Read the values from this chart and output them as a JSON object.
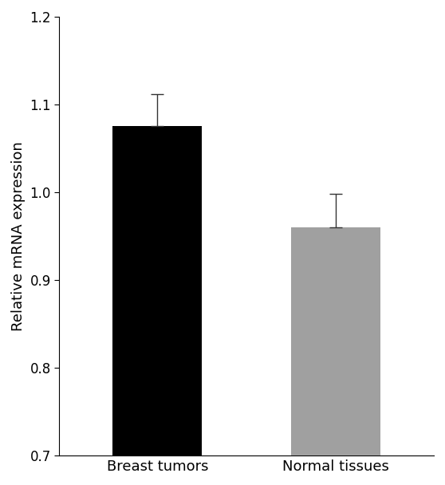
{
  "categories": [
    "Breast tumors",
    "Normal tissues"
  ],
  "values": [
    1.075,
    0.96
  ],
  "errors_up": [
    0.037,
    0.038
  ],
  "bar_colors": [
    "#000000",
    "#a0a0a0"
  ],
  "ylabel": "Relative mRNA expression",
  "ylim": [
    0.7,
    1.2
  ],
  "yticks": [
    0.7,
    0.8,
    0.9,
    1.0,
    1.1,
    1.2
  ],
  "bar_width": 0.5,
  "background_color": "#ffffff",
  "capsize": 6,
  "error_color": "#333333",
  "error_linewidth": 1.0,
  "tick_fontsize": 12,
  "ylabel_fontsize": 13,
  "xlabel_fontsize": 13
}
